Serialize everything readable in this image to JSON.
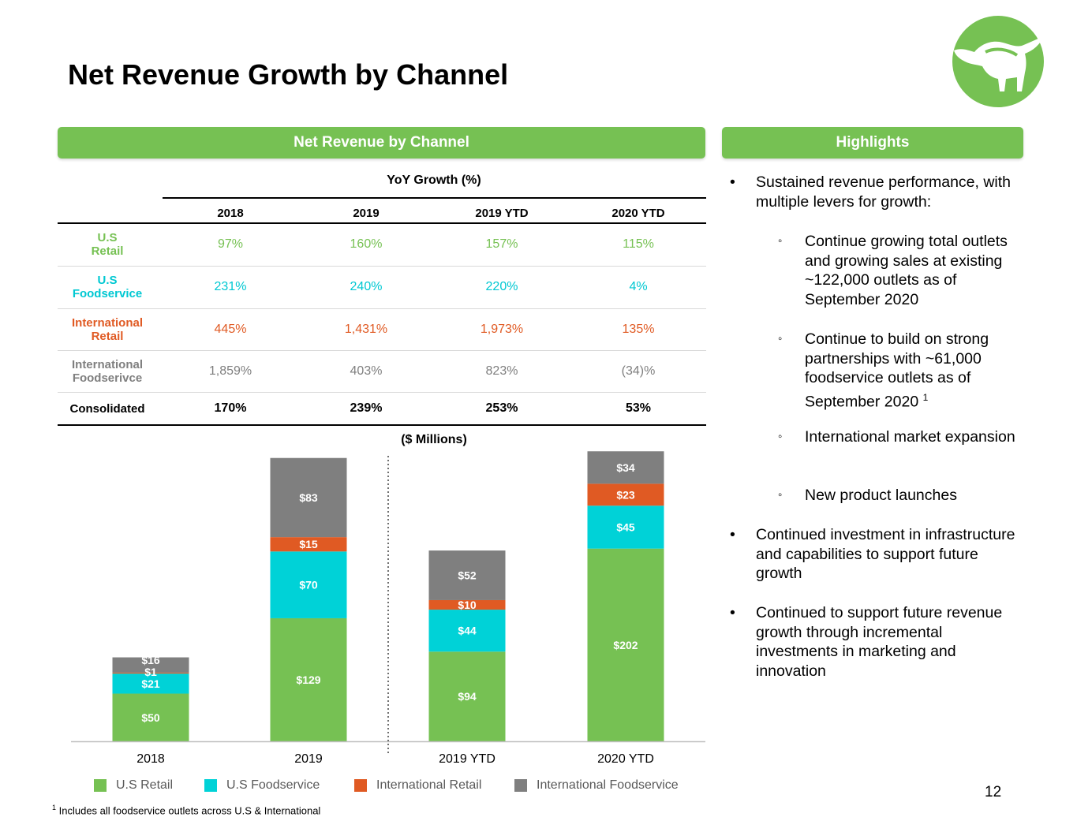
{
  "title": "Net Revenue Growth by Channel",
  "logo_icon": "steer-logo-icon",
  "brand_color": "#76c153",
  "left_banner": "Net Revenue by Channel",
  "right_banner": "Highlights",
  "table": {
    "heading": "YoY Growth (%)",
    "columns": [
      "2018",
      "2019",
      "2019 YTD",
      "2020 YTD"
    ],
    "rows": [
      {
        "label_1": "U.S",
        "label_2": "Retail",
        "values": [
          "97%",
          "160%",
          "157%",
          "115%"
        ],
        "color": "#76c153"
      },
      {
        "label_1": "U.S",
        "label_2": "Foodservice",
        "values": [
          "231%",
          "240%",
          "220%",
          "4%"
        ],
        "color": "#00c8d2"
      },
      {
        "label_1": "International",
        "label_2": "Retail",
        "values": [
          "445%",
          "1,431%",
          "1,973%",
          "135%"
        ],
        "color": "#e05a23"
      },
      {
        "label_1": "International",
        "label_2": "Foodserivce",
        "values": [
          "1,859%",
          "403%",
          "823%",
          "(34)%"
        ],
        "color": "#7f7f7f"
      },
      {
        "label_1": "Consolidated",
        "label_2": "",
        "values": [
          "170%",
          "239%",
          "253%",
          "53%"
        ],
        "color": "#000000"
      }
    ]
  },
  "chart_data": {
    "type": "bar",
    "stacked": true,
    "subtitle": "($ Millions)",
    "categories": [
      "2018",
      "2019",
      "2019 YTD",
      "2020 YTD"
    ],
    "series": [
      {
        "name": "U.S Retail",
        "color": "#76c153",
        "values": [
          50,
          129,
          94,
          202
        ],
        "labels": [
          "$50",
          "$129",
          "$94",
          "$202"
        ]
      },
      {
        "name": "U.S Foodservice",
        "color": "#00d2d7",
        "values": [
          21,
          70,
          44,
          45
        ],
        "labels": [
          "$21",
          "$70",
          "$44",
          "$45"
        ]
      },
      {
        "name": "International Retail",
        "color": "#e05a23",
        "values": [
          1,
          15,
          10,
          23
        ],
        "labels": [
          "$1",
          "$15",
          "$10",
          "$23"
        ]
      },
      {
        "name": "International Foodservice",
        "color": "#7f7f7f",
        "values": [
          16,
          83,
          52,
          34
        ],
        "labels": [
          "$16",
          "$83",
          "$52",
          "$34"
        ]
      }
    ],
    "ylim": [
      0,
      310
    ],
    "separator_after_category": "2019",
    "legend_position": "bottom"
  },
  "highlights": {
    "b1": "Sustained revenue performance, with multiple levers for growth:",
    "s1": "Continue growing total outlets and growing sales at existing ~122,000 outlets as of September 2020",
    "s2": "Continue to build on strong partnerships with ~61,000 foodservice outlets as of September 2020",
    "s2_sup": "1",
    "s3": "International market expansion",
    "s4": "New product launches",
    "b2": "Continued investment in infrastructure and capabilities to support future growth",
    "b3": "Continued to support future revenue growth through incremental investments in marketing and innovation",
    "bullet": "•",
    "sub_bullet": "◦"
  },
  "page_number": "12",
  "footnote_mark": "1",
  "footnote": "Includes all foodservice outlets across U.S & International"
}
